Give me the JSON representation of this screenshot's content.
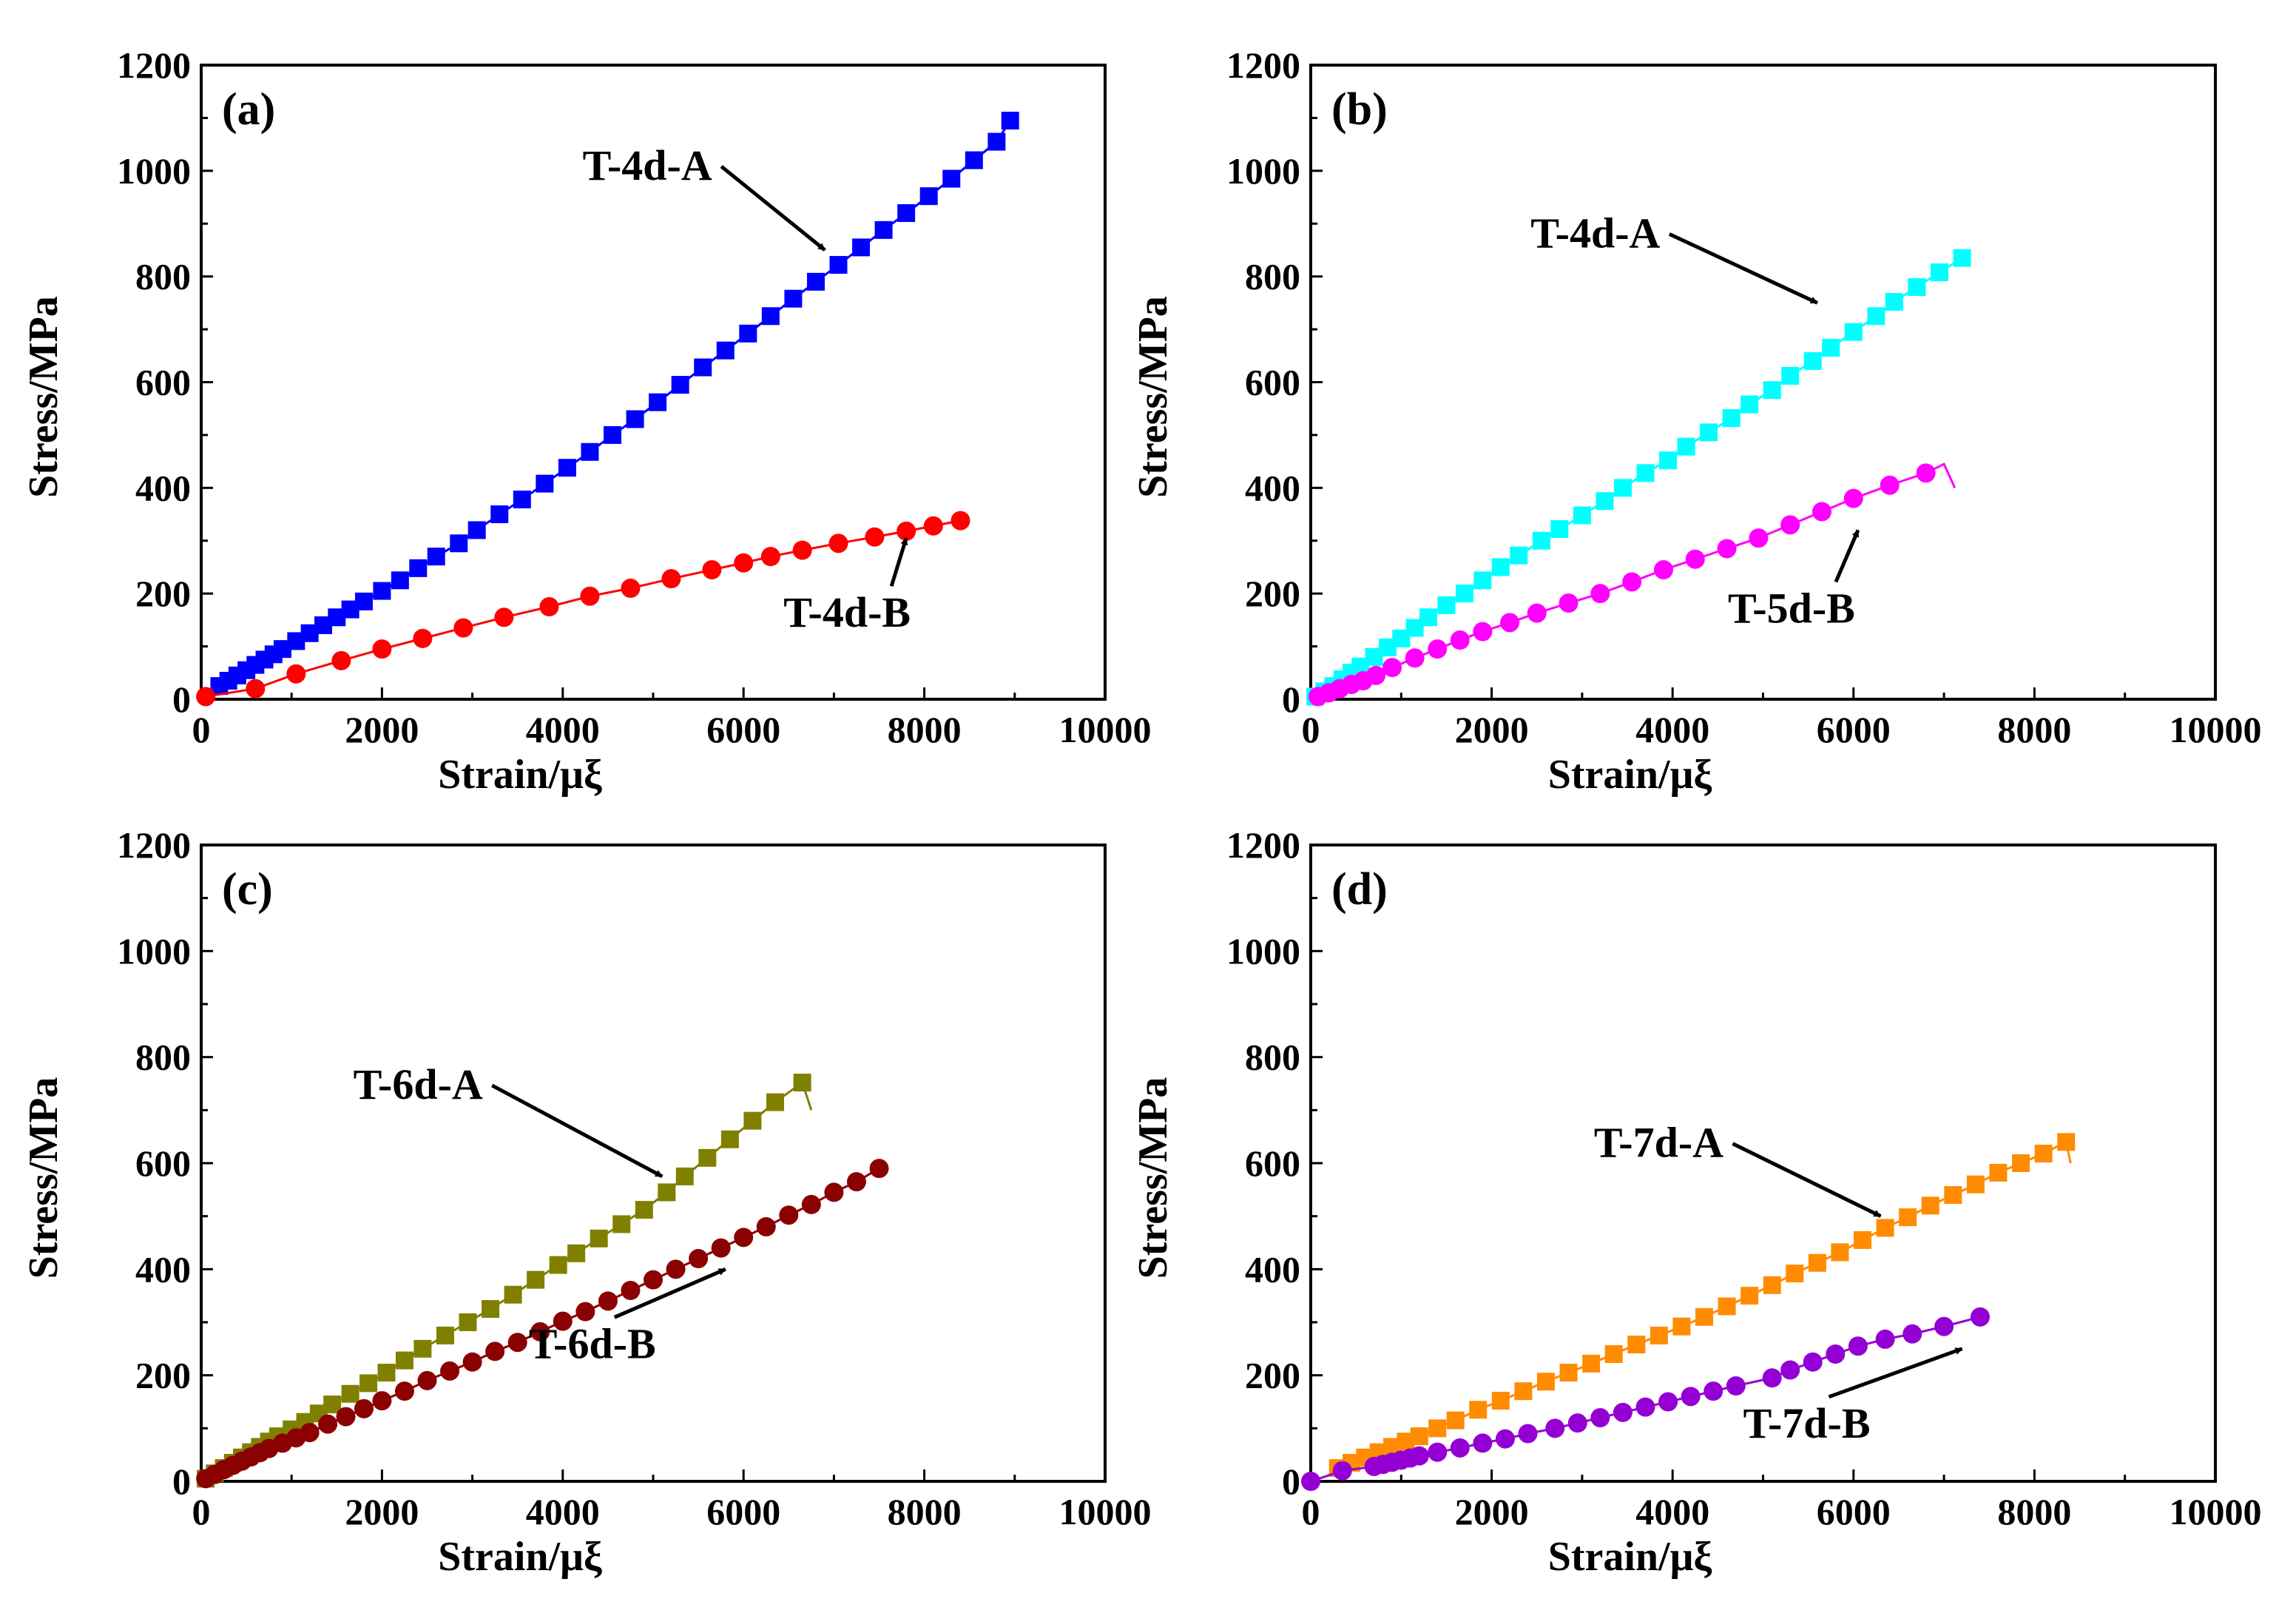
{
  "chart_data": [
    {
      "type": "line",
      "panel_label": "(a)",
      "xlabel": "Strain/μξ",
      "ylabel": "Stress/MPa",
      "xlim": [
        0,
        10000
      ],
      "ylim": [
        0,
        1200
      ],
      "xticks": [
        0,
        2000,
        4000,
        6000,
        8000,
        10000
      ],
      "yticks": [
        0,
        200,
        400,
        600,
        800,
        1000,
        1200
      ],
      "series": [
        {
          "name": "T-4d-A",
          "color": "#0000ff",
          "marker": "square",
          "x": [
            200,
            300,
            400,
            500,
            600,
            700,
            800,
            900,
            1050,
            1200,
            1350,
            1500,
            1650,
            1800,
            2000,
            2200,
            2400,
            2600,
            2850,
            3050,
            3300,
            3550,
            3800,
            4050,
            4300,
            4550,
            4800,
            5050,
            5300,
            5550,
            5800,
            6050,
            6300,
            6550,
            6800,
            7050,
            7300,
            7550,
            7800,
            8050,
            8300,
            8550,
            8800,
            8950
          ],
          "y": [
            25,
            35,
            45,
            55,
            65,
            75,
            85,
            95,
            110,
            125,
            140,
            155,
            170,
            185,
            205,
            225,
            248,
            270,
            295,
            320,
            350,
            378,
            408,
            438,
            468,
            500,
            530,
            562,
            595,
            628,
            660,
            692,
            725,
            758,
            790,
            822,
            855,
            888,
            920,
            952,
            985,
            1020,
            1055,
            1095
          ],
          "break": []
        },
        {
          "name": "T-4d-B",
          "color": "#ff0000",
          "marker": "circle",
          "x": [
            50,
            600,
            1050,
            1550,
            2000,
            2450,
            2900,
            3350,
            3850,
            4300,
            4750,
            5200,
            5650,
            6000,
            6300,
            6650,
            7050,
            7450,
            7800,
            8100,
            8400
          ],
          "y": [
            5,
            20,
            48,
            73,
            95,
            115,
            135,
            155,
            175,
            195,
            210,
            228,
            245,
            258,
            270,
            282,
            295,
            307,
            318,
            328,
            338
          ],
          "break": []
        }
      ],
      "annotations": [
        {
          "text": "T-4d-A",
          "points_to": [
            6900,
            850
          ]
        },
        {
          "text": "T-4d-B",
          "points_to": [
            7800,
            305
          ]
        }
      ]
    },
    {
      "type": "line",
      "panel_label": "(b)",
      "xlabel": "Strain/μξ",
      "ylabel": "Stress/MPa",
      "xlim": [
        0,
        10000
      ],
      "ylim": [
        0,
        1200
      ],
      "xticks": [
        0,
        2000,
        4000,
        6000,
        8000,
        10000
      ],
      "yticks": [
        0,
        200,
        400,
        600,
        800,
        1000,
        1200
      ],
      "series": [
        {
          "name": "T-4d-A",
          "color": "#00ffff",
          "marker": "square",
          "x": [
            50,
            150,
            250,
            350,
            450,
            550,
            700,
            850,
            1000,
            1150,
            1300,
            1500,
            1700,
            1900,
            2100,
            2300,
            2550,
            2750,
            3000,
            3250,
            3450,
            3700,
            3950,
            4150,
            4400,
            4650,
            4850,
            5100,
            5300,
            5550,
            5750,
            6000,
            6250,
            6450,
            6700,
            6950,
            7200
          ],
          "y": [
            5,
            15,
            25,
            38,
            50,
            62,
            80,
            98,
            115,
            135,
            155,
            178,
            200,
            225,
            250,
            272,
            300,
            322,
            348,
            375,
            400,
            428,
            452,
            478,
            505,
            532,
            558,
            585,
            612,
            640,
            665,
            695,
            725,
            752,
            780,
            808,
            835
          ],
          "break": []
        },
        {
          "name": "T-5d-B",
          "color": "#ff00ff",
          "marker": "circle",
          "x": [
            80,
            200,
            320,
            450,
            580,
            720,
            900,
            1150,
            1400,
            1650,
            1900,
            2200,
            2500,
            2850,
            3200,
            3550,
            3900,
            4250,
            4600,
            4950,
            5300,
            5650,
            6000,
            6400,
            6800
          ],
          "y": [
            5,
            12,
            20,
            28,
            35,
            45,
            60,
            78,
            95,
            112,
            128,
            145,
            163,
            182,
            200,
            222,
            245,
            265,
            285,
            305,
            330,
            355,
            380,
            405,
            428
          ],
          "break": [
            [
              7000,
              445
            ],
            [
              7120,
              400
            ]
          ]
        }
      ],
      "annotations": [
        {
          "text": "T-4d-A",
          "points_to": [
            5600,
            750
          ]
        },
        {
          "text": "T-5d-B",
          "points_to": [
            6050,
            320
          ]
        }
      ]
    },
    {
      "type": "line",
      "panel_label": "(c)",
      "xlabel": "Strain/μξ",
      "ylabel": "Stress/MPa",
      "xlim": [
        0,
        10000
      ],
      "ylim": [
        0,
        1200
      ],
      "xticks": [
        0,
        2000,
        4000,
        6000,
        8000,
        10000
      ],
      "yticks": [
        0,
        200,
        400,
        600,
        800,
        1000,
        1200
      ],
      "series": [
        {
          "name": "T-6d-A",
          "color": "#808000",
          "marker": "square",
          "x": [
            50,
            150,
            250,
            350,
            450,
            550,
            650,
            750,
            850,
            1000,
            1150,
            1300,
            1450,
            1650,
            1850,
            2050,
            2250,
            2450,
            2700,
            2950,
            3200,
            3450,
            3700,
            3950,
            4150,
            4400,
            4650,
            4900,
            5150,
            5350,
            5600,
            5850,
            6100,
            6350,
            6650
          ],
          "y": [
            5,
            15,
            25,
            35,
            45,
            55,
            65,
            75,
            85,
            98,
            112,
            128,
            145,
            165,
            185,
            205,
            228,
            250,
            275,
            300,
            325,
            352,
            380,
            408,
            430,
            458,
            485,
            512,
            545,
            575,
            610,
            645,
            680,
            715,
            752
          ],
          "break": [
            [
              6650,
              752
            ],
            [
              6750,
              700
            ]
          ]
        },
        {
          "name": "T-6d-B",
          "color": "#8b0000",
          "marker": "circle",
          "x": [
            50,
            150,
            250,
            350,
            450,
            550,
            650,
            750,
            900,
            1050,
            1200,
            1400,
            1600,
            1800,
            2000,
            2250,
            2500,
            2750,
            3000,
            3250,
            3500,
            3750,
            4000,
            4250,
            4500,
            4750,
            5000,
            5250,
            5500,
            5750,
            6000,
            6250,
            6500,
            6750,
            7000,
            7250,
            7500
          ],
          "y": [
            5,
            13,
            22,
            30,
            38,
            46,
            54,
            62,
            72,
            82,
            92,
            108,
            122,
            137,
            152,
            170,
            190,
            208,
            225,
            245,
            262,
            282,
            302,
            320,
            340,
            360,
            380,
            400,
            420,
            440,
            460,
            480,
            502,
            522,
            545,
            565,
            590
          ],
          "break": []
        }
      ],
      "annotations": [
        {
          "text": "T-6d-A",
          "points_to": [
            5100,
            575
          ]
        },
        {
          "text": "T-6d-B",
          "points_to": [
            5800,
            400
          ]
        }
      ]
    },
    {
      "type": "line",
      "panel_label": "(d)",
      "xlabel": "Strain/μξ",
      "ylabel": "Stress/MPa",
      "xlim": [
        0,
        10000
      ],
      "ylim": [
        0,
        1200
      ],
      "xticks": [
        0,
        2000,
        4000,
        6000,
        8000,
        10000
      ],
      "yticks": [
        0,
        200,
        400,
        600,
        800,
        1000,
        1200
      ],
      "series": [
        {
          "name": "T-7d-A",
          "color": "#ff8c00",
          "marker": "square",
          "x": [
            300,
            450,
            600,
            750,
            900,
            1050,
            1200,
            1400,
            1600,
            1850,
            2100,
            2350,
            2600,
            2850,
            3100,
            3350,
            3600,
            3850,
            4100,
            4350,
            4600,
            4850,
            5100,
            5350,
            5600,
            5850,
            6100,
            6350,
            6600,
            6850,
            7100,
            7350,
            7600,
            7850,
            8100,
            8350
          ],
          "y": [
            25,
            35,
            45,
            55,
            65,
            75,
            85,
            100,
            115,
            135,
            152,
            170,
            188,
            205,
            222,
            240,
            258,
            275,
            292,
            310,
            330,
            350,
            370,
            392,
            412,
            432,
            455,
            478,
            498,
            520,
            540,
            560,
            582,
            600,
            618,
            640
          ],
          "break": [
            [
              8350,
              640
            ],
            [
              8400,
              600
            ]
          ]
        },
        {
          "name": "T-7d-B",
          "color": "#9400d3",
          "marker": "circle",
          "x": [
            0,
            350,
            700,
            800,
            900,
            1000,
            1100,
            1200,
            1400,
            1650,
            1900,
            2150,
            2400,
            2700,
            2950,
            3200,
            3450,
            3700,
            3950,
            4200,
            4450,
            4700,
            5100,
            5300,
            5550,
            5800,
            6050,
            6350,
            6650,
            7000,
            7400
          ],
          "y": [
            0,
            20,
            28,
            32,
            36,
            40,
            44,
            48,
            55,
            63,
            72,
            80,
            90,
            100,
            110,
            120,
            130,
            140,
            150,
            160,
            170,
            180,
            195,
            210,
            225,
            240,
            255,
            268,
            278,
            292,
            310
          ],
          "break": []
        }
      ],
      "annotations": [
        {
          "text": "T-7d-A",
          "points_to": [
            6300,
            500
          ]
        },
        {
          "text": "T-7d-B",
          "points_to": [
            7200,
            250
          ]
        }
      ]
    }
  ]
}
